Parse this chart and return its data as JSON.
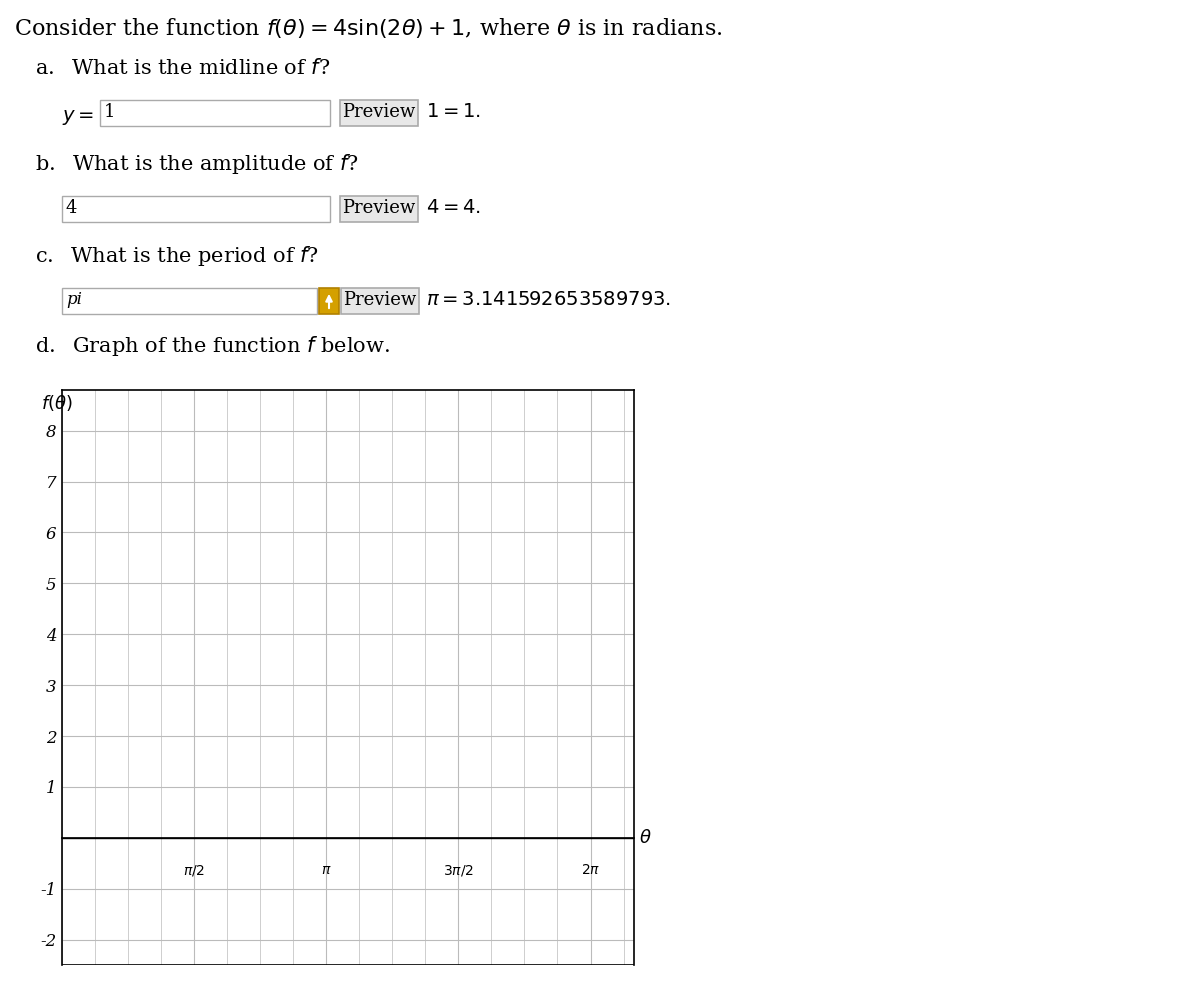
{
  "bg": "#ffffff",
  "title": "Consider the function $f(\\theta) = 4\\sin(2\\theta) + 1$, where $\\theta$ is in radians.",
  "qa_label": "a.  What is the midline of $f$?",
  "qa_input": "$y = $ 1",
  "qa_preview": "Preview",
  "qa_result": "$1 = 1.$",
  "qb_label": "b.  What is the amplitude of $f$?",
  "qb_input": "4",
  "qb_preview": "Preview",
  "qb_result": "$4 = 4.$",
  "qc_label": "c.  What is the period of $f$?",
  "qc_input": "pi",
  "qc_preview": "Preview",
  "qc_result": "$\\pi = 3.141592653589793.$",
  "qd_label": "d.  Graph of the function $f$ below.",
  "graph_ftheta": "$f(\\theta)$",
  "graph_theta": "$\\theta$",
  "graph_yticks": [
    -2,
    -1,
    1,
    2,
    3,
    4,
    5,
    6,
    7,
    8
  ],
  "graph_xtick_vals": [
    1.5707963267948966,
    3.141592653589793,
    4.71238898038469,
    6.283185307179586
  ],
  "graph_xtick_labels": [
    "$\\pi/2$",
    "$\\pi$",
    "$3\\pi/2$",
    "$2\\pi$"
  ],
  "graph_xlim": [
    0.0,
    6.8
  ],
  "graph_ylim": [
    -2.5,
    8.8
  ],
  "grid_color": "#bbbbbb",
  "grid_minor_color": "#dddddd",
  "axes_lw": 1.0,
  "input_border": "#aaaaaa",
  "preview_border": "#aaaaaa",
  "preview_bg": "#e8e8e8",
  "arrow_bg": "#d4a000",
  "arrow_border": "#b08000"
}
